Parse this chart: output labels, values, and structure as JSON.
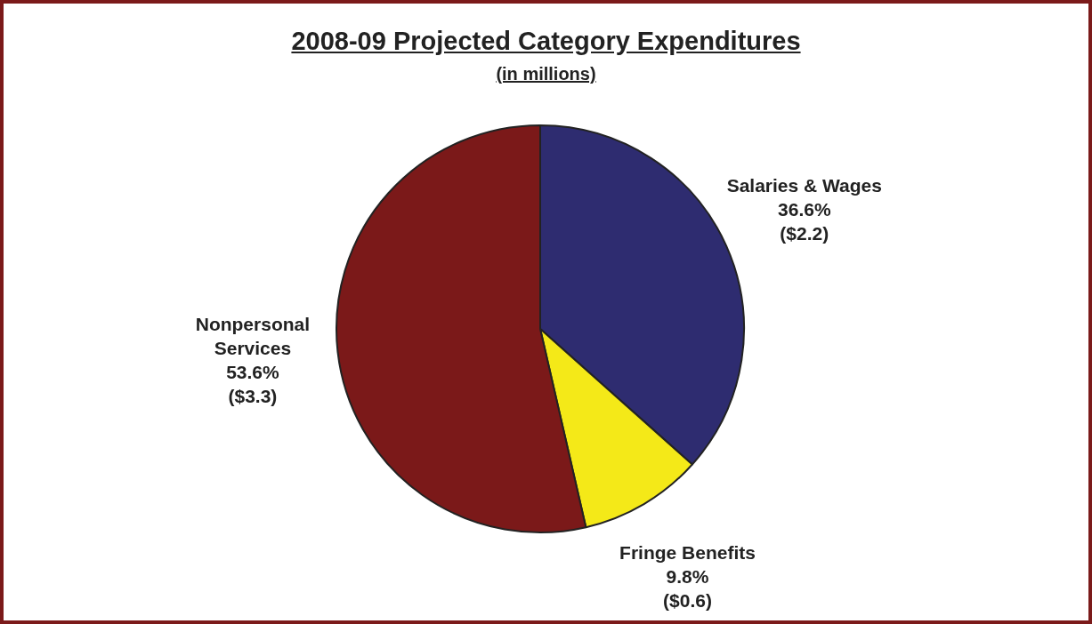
{
  "chart_data": {
    "type": "pie",
    "title": "2008-09 Projected Category Expenditures",
    "subtitle": "(in millions)",
    "categories": [
      "Salaries & Wages",
      "Fringe Benefits",
      "Nonpersonal Services"
    ],
    "values": [
      36.6,
      9.8,
      53.6
    ],
    "colors": [
      "#2e2c70",
      "#f4e918",
      "#7b1919"
    ],
    "value_labels": [
      "36.6%\n($2.2)",
      "9.8%\n($0.6)",
      "53.6%\n($3.3)"
    ],
    "legend": false
  }
}
